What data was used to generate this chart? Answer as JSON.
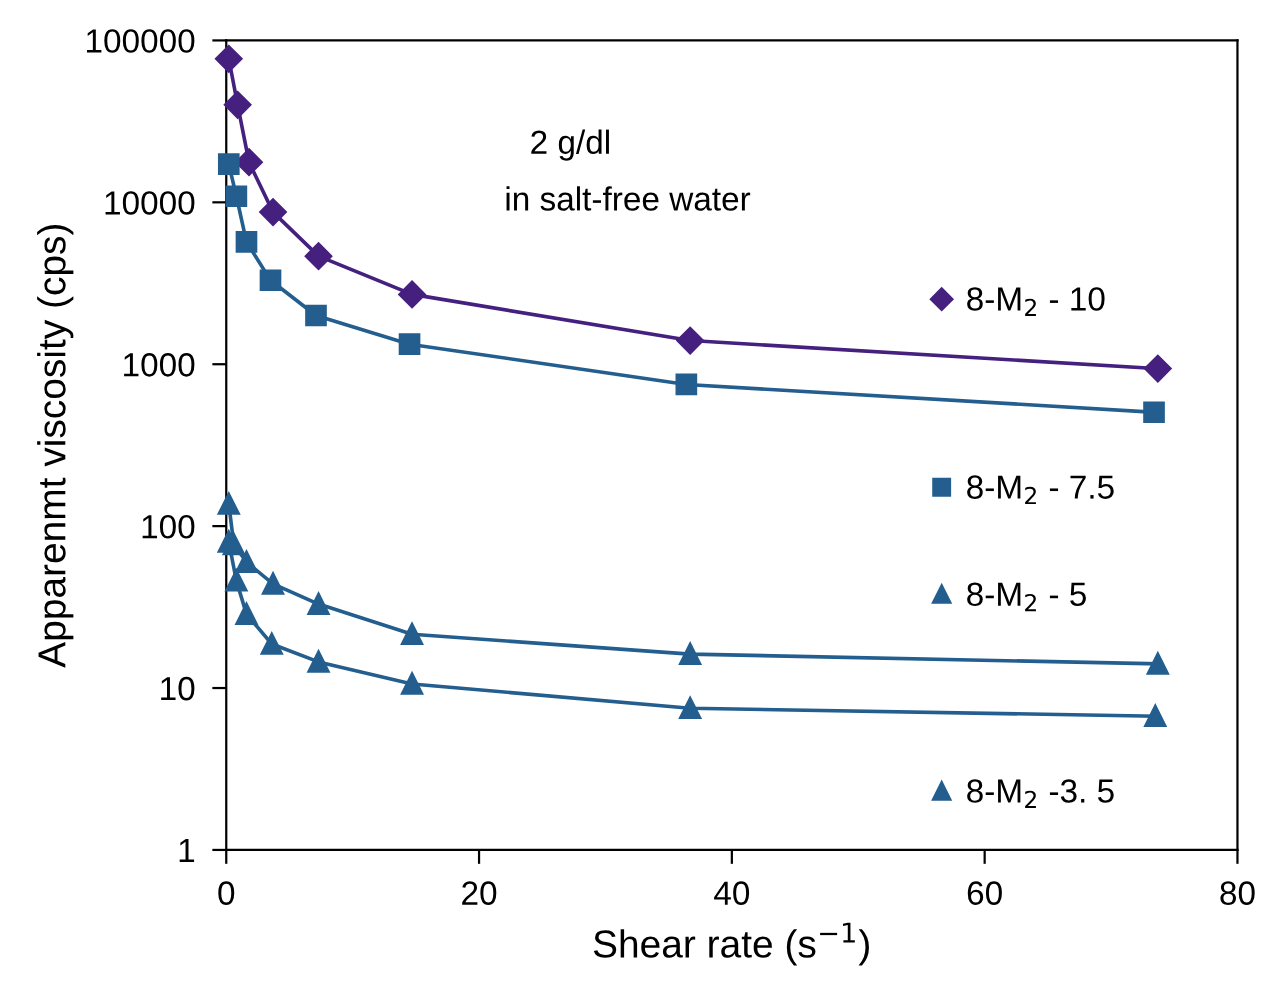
{
  "chart_data": {
    "type": "line",
    "xlabel": "Shear rate (s$^{−1}$)",
    "ylabel": "Apparenmt viscosity (cps)",
    "annotations": [
      "2 g/dl",
      "in salt-free water"
    ],
    "series": [
      {
        "name": "8-M$_{2}$ - 10",
        "color": "#45207f",
        "marker": "diamond",
        "x": [
          0.2,
          0.9,
          1.8,
          3.7,
          7.3,
          14.7,
          36.7,
          73.7
        ],
        "values": [
          77000,
          40000,
          17700,
          8700,
          4650,
          2700,
          1400,
          940
        ]
      },
      {
        "name": "8-M$_{2}$ - 7.5",
        "color": "#235e8e",
        "marker": "square",
        "x": [
          0.2,
          0.8,
          1.6,
          3.5,
          7.1,
          14.5,
          36.4,
          73.4
        ],
        "values": [
          17200,
          10900,
          5700,
          3300,
          2000,
          1330,
          750,
          505
        ]
      },
      {
        "name": "8-M$_{2}$ - 5",
        "color": "#235e8e",
        "marker": "triangle",
        "x": [
          0.2,
          0.6,
          1.6,
          3.7,
          7.3,
          14.7,
          36.7,
          73.7
        ],
        "values": [
          137,
          77,
          60,
          44,
          33,
          21.5,
          16.2,
          14.1
        ]
      },
      {
        "name": "8-M$_{2}$ -3. 5",
        "color": "#235e8e",
        "marker": "triangle",
        "x": [
          0.2,
          0.8,
          1.6,
          3.6,
          7.3,
          14.7,
          36.7,
          73.5
        ],
        "values": [
          80,
          46,
          28.6,
          18.7,
          14.5,
          10.6,
          7.5,
          6.7
        ]
      }
    ],
    "log": "y",
    "xlim": [
      0,
      80
    ],
    "xticks": [
      0,
      20,
      40,
      60,
      80
    ],
    "ylim": [
      1,
      100000
    ],
    "yticks": [
      1,
      10,
      100,
      1000,
      10000,
      100000
    ],
    "grid": false,
    "legend": "right",
    "line_style": "solid"
  }
}
